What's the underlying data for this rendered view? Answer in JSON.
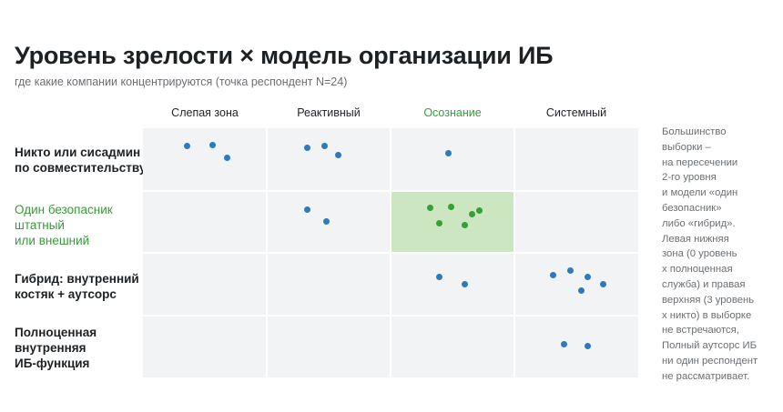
{
  "title": "Уровень зрелости × модель организации ИБ",
  "subtitle": "где какие компании концентрируются (точка респондент N=24)",
  "colors": {
    "dot_default": "#2c7ac0",
    "dot_highlight": "#33a133",
    "highlight_text": "#3a9a3a",
    "cell_bg": "#f2f3f5",
    "cell_highlight": "#cde6c2"
  },
  "chart_data": {
    "type": "scatter",
    "columns": [
      {
        "label": "Слепая зона",
        "highlight": false
      },
      {
        "label": "Реактивный",
        "highlight": false
      },
      {
        "label": "Осознание",
        "highlight": true
      },
      {
        "label": "Системный",
        "highlight": false
      }
    ],
    "rows": [
      {
        "lines": [
          "Никто или сисадмин",
          "по совместительству"
        ],
        "highlight": false
      },
      {
        "lines": [
          "Один безопасник",
          "штатный",
          "или внешний"
        ],
        "highlight": true
      },
      {
        "lines": [
          "Гибрид: внутренний",
          "костяк + аутсорс"
        ],
        "highlight": false
      },
      {
        "lines": [
          "Полноценная",
          "внутренняя",
          "ИБ-функция"
        ],
        "highlight": false
      }
    ],
    "highlight_cell": {
      "row": 1,
      "col": 2
    },
    "points": [
      {
        "row": 0,
        "col": 0,
        "x": 0.36,
        "y": 0.29
      },
      {
        "row": 0,
        "col": 0,
        "x": 0.56,
        "y": 0.27
      },
      {
        "row": 0,
        "col": 0,
        "x": 0.68,
        "y": 0.47
      },
      {
        "row": 0,
        "col": 1,
        "x": 0.33,
        "y": 0.31
      },
      {
        "row": 0,
        "col": 1,
        "x": 0.47,
        "y": 0.29
      },
      {
        "row": 0,
        "col": 1,
        "x": 0.58,
        "y": 0.43
      },
      {
        "row": 0,
        "col": 2,
        "x": 0.47,
        "y": 0.4
      },
      {
        "row": 1,
        "col": 1,
        "x": 0.33,
        "y": 0.31
      },
      {
        "row": 1,
        "col": 1,
        "x": 0.48,
        "y": 0.5
      },
      {
        "row": 1,
        "col": 2,
        "x": 0.32,
        "y": 0.28
      },
      {
        "row": 1,
        "col": 2,
        "x": 0.49,
        "y": 0.26
      },
      {
        "row": 1,
        "col": 2,
        "x": 0.66,
        "y": 0.38
      },
      {
        "row": 1,
        "col": 2,
        "x": 0.72,
        "y": 0.32
      },
      {
        "row": 1,
        "col": 2,
        "x": 0.39,
        "y": 0.53
      },
      {
        "row": 1,
        "col": 2,
        "x": 0.6,
        "y": 0.56
      },
      {
        "row": 2,
        "col": 2,
        "x": 0.39,
        "y": 0.39
      },
      {
        "row": 2,
        "col": 2,
        "x": 0.6,
        "y": 0.5
      },
      {
        "row": 2,
        "col": 3,
        "x": 0.31,
        "y": 0.36
      },
      {
        "row": 2,
        "col": 3,
        "x": 0.45,
        "y": 0.29
      },
      {
        "row": 2,
        "col": 3,
        "x": 0.59,
        "y": 0.39
      },
      {
        "row": 2,
        "col": 3,
        "x": 0.72,
        "y": 0.5
      },
      {
        "row": 2,
        "col": 3,
        "x": 0.54,
        "y": 0.6
      },
      {
        "row": 3,
        "col": 3,
        "x": 0.4,
        "y": 0.47
      },
      {
        "row": 3,
        "col": 3,
        "x": 0.59,
        "y": 0.49
      }
    ]
  },
  "note": [
    "Большинство",
    "выборки –",
    "на пересечении",
    "2-го уровня",
    "и модели «один",
    "безопасник»",
    "либо «гибрид».",
    "Левая нижняя",
    "зона (0 уровень",
    "х полноценная",
    "служба) и правая",
    "верхняя (3 уровень",
    "х никто) в выборке",
    "не встречаются,",
    "Полный аутсорс ИБ",
    "ни один респондент",
    "не рассматривает."
  ]
}
